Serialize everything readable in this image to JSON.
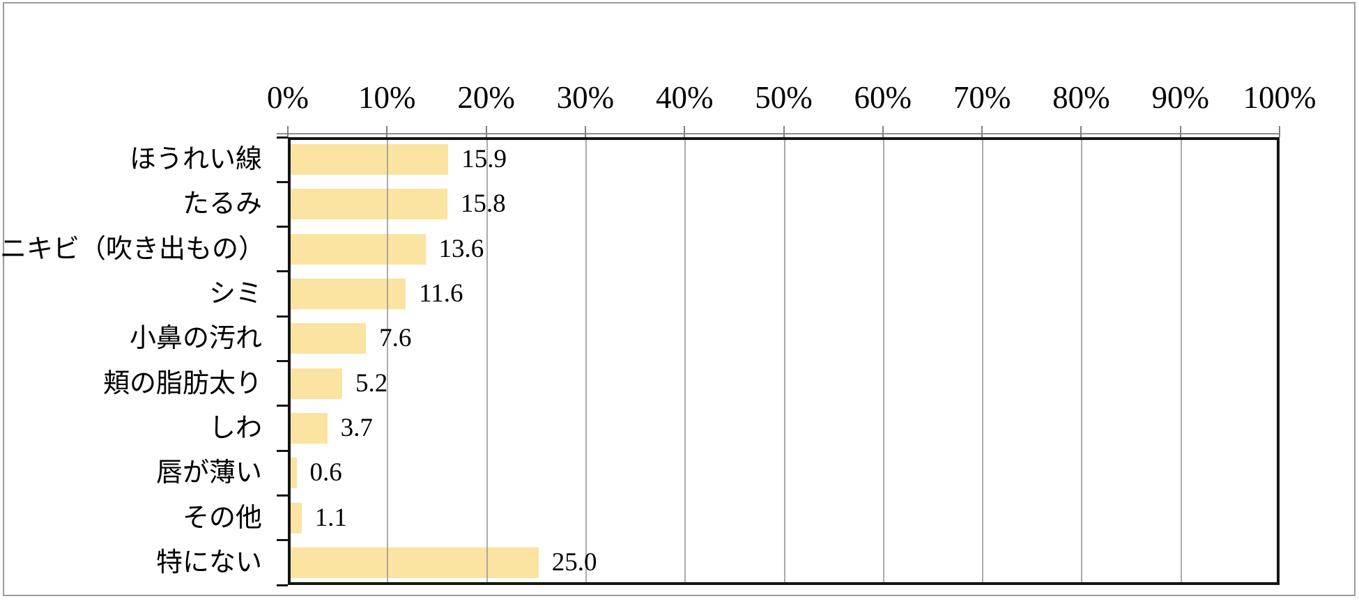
{
  "chart_data": {
    "type": "bar",
    "orientation": "horizontal",
    "title": "",
    "xlabel": "",
    "ylabel": "",
    "xlim": [
      0,
      100
    ],
    "grid": true,
    "legend_position": "none",
    "categories": [
      "ほうれい線",
      "たるみ",
      "ニキビ（吹き出もの）",
      "シミ",
      "小鼻の汚れ",
      "頬の脂肪太り",
      "しわ",
      "唇が薄い",
      "その他",
      "特にない"
    ],
    "values": [
      15.9,
      15.8,
      13.6,
      11.6,
      7.6,
      5.2,
      3.7,
      0.6,
      1.1,
      25.0
    ],
    "value_labels": [
      "15.9",
      "15.8",
      "13.6",
      "11.6",
      "7.6",
      "5.2",
      "3.7",
      "0.6",
      "1.1",
      "25.0"
    ],
    "x_tick_labels": [
      "0%",
      "10%",
      "20%",
      "30%",
      "40%",
      "50%",
      "60%",
      "70%",
      "80%",
      "90%",
      "100%"
    ],
    "colors": {
      "bar_fill": "#FBE3A1",
      "gridline": "#9C9C9C",
      "axis_line": "#141414",
      "top_tick": "#808080",
      "hairline": "#8C8C8C",
      "outer_frame": "#9A9A9A",
      "text": "#000000",
      "background": "#FFFFFF"
    }
  }
}
